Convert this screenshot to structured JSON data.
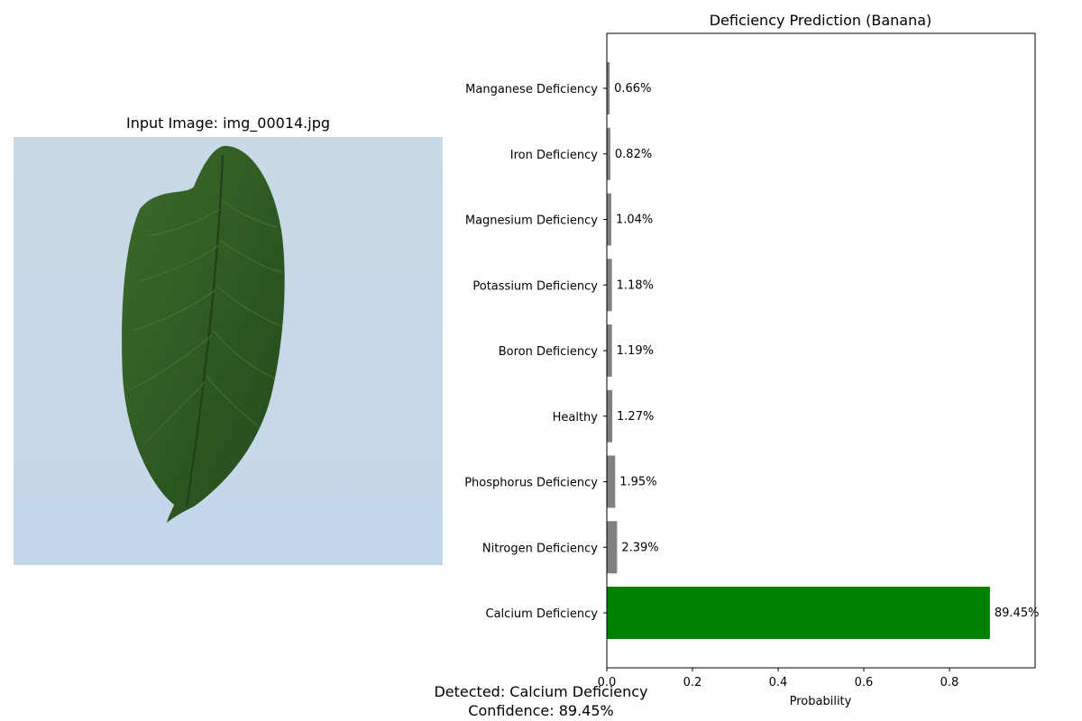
{
  "left_panel": {
    "title": "Input Image: img_00014.jpg",
    "image_description_icon": "leaf-image"
  },
  "chart_data": {
    "type": "bar",
    "orientation": "horizontal",
    "title": "Deficiency Prediction (Banana)",
    "xlabel": "Probability",
    "ylabel": "",
    "xlim": [
      0,
      1.0
    ],
    "xticks": [
      0.0,
      0.2,
      0.4,
      0.6,
      0.8
    ],
    "xtick_labels": [
      "0.0",
      "0.2",
      "0.4",
      "0.6",
      "0.8"
    ],
    "grid": false,
    "categories": [
      "Calcium Deficiency",
      "Nitrogen Deficiency",
      "Phosphorus Deficiency",
      "Healthy",
      "Boron Deficiency",
      "Potassium Deficiency",
      "Magnesium Deficiency",
      "Iron Deficiency",
      "Manganese Deficiency"
    ],
    "values": [
      0.8945,
      0.0239,
      0.0195,
      0.0127,
      0.0119,
      0.0118,
      0.0104,
      0.0082,
      0.0066
    ],
    "value_labels": [
      "89.45%",
      "2.39%",
      "1.95%",
      "1.27%",
      "1.19%",
      "1.18%",
      "1.04%",
      "0.82%",
      "0.66%"
    ],
    "colors": [
      "#008000",
      "#808080",
      "#808080",
      "#808080",
      "#808080",
      "#808080",
      "#808080",
      "#808080",
      "#808080"
    ],
    "highlight_color": "#008000",
    "default_color": "#808080"
  },
  "footer": {
    "detected": "Detected: Calcium Deficiency",
    "confidence": "Confidence: 89.45%"
  }
}
